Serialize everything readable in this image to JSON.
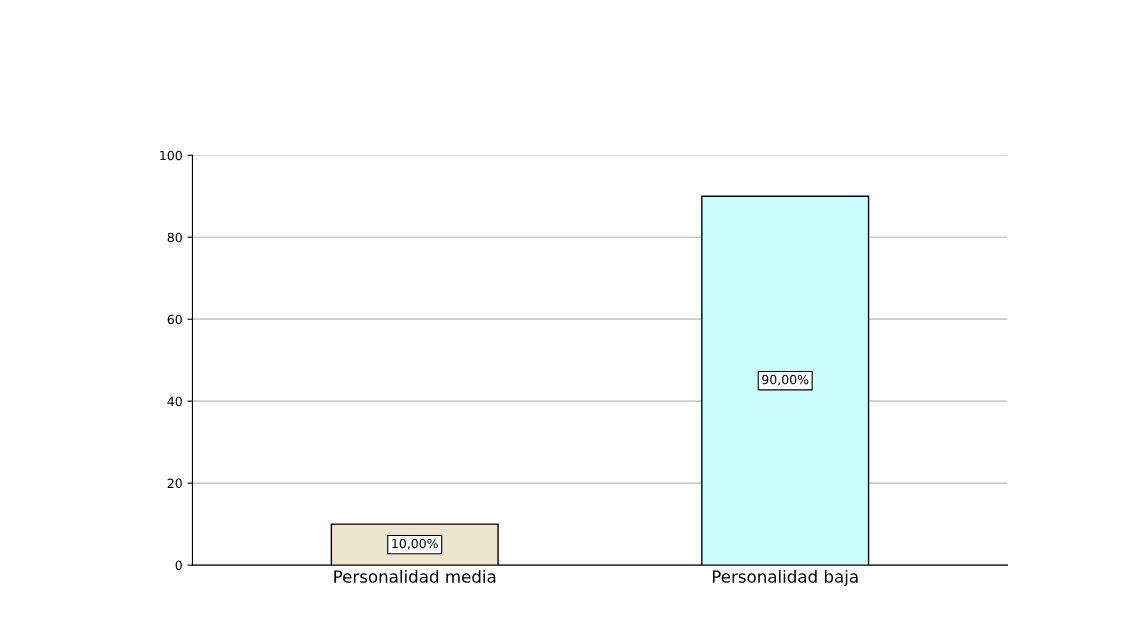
{
  "chart_data": {
    "type": "bar",
    "categories": [
      "Personalidad media",
      "Personalidad baja"
    ],
    "values": [
      10,
      90
    ],
    "colors": [
      "#ede5d0",
      "#ccffff"
    ],
    "value_labels": [
      "10,00%",
      "90,00%"
    ],
    "ylim": [
      0,
      100
    ],
    "yticks": [
      0,
      20,
      40,
      60,
      80,
      100
    ],
    "grid": "y"
  }
}
